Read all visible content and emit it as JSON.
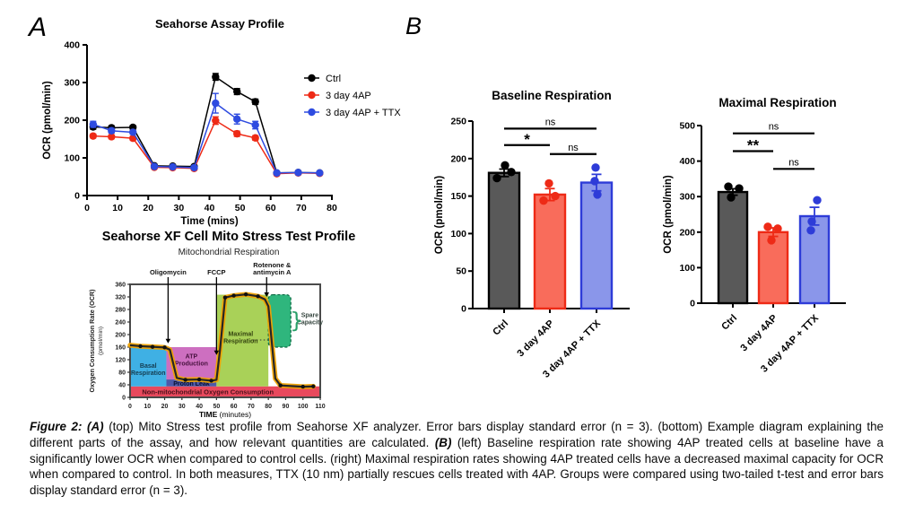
{
  "panel_a": {
    "label": "A"
  },
  "panel_b": {
    "label": "B"
  },
  "chart_data": [
    {
      "type": "line",
      "title": "Seahorse Assay Profile",
      "xlabel": "Time (mins)",
      "ylabel": "OCR (pmol/min)",
      "xlim": [
        0,
        80
      ],
      "ylim": [
        0,
        400
      ],
      "xtick_step": 10,
      "ytick_step": 100,
      "legend_position": "right",
      "x": [
        2,
        8,
        15,
        22,
        28,
        35,
        42,
        49,
        55,
        62,
        69,
        76
      ],
      "series": [
        {
          "name": "Ctrl",
          "color": "#000000",
          "values": [
            182,
            180,
            181,
            79,
            78,
            77,
            315,
            276,
            249,
            60,
            61,
            60
          ],
          "errors": [
            6,
            5,
            5,
            3,
            3,
            3,
            9,
            8,
            7,
            2,
            2,
            2
          ]
        },
        {
          "name": "3 day 4AP",
          "color": "#EE2A16",
          "values": [
            158,
            156,
            152,
            75,
            74,
            72,
            199,
            164,
            153,
            58,
            60,
            59
          ],
          "errors": [
            5,
            5,
            5,
            3,
            3,
            3,
            10,
            7,
            6,
            2,
            2,
            2
          ]
        },
        {
          "name": "3 day 4AP + TTX",
          "color": "#2E4BE0",
          "values": [
            189,
            172,
            168,
            77,
            76,
            74,
            245,
            203,
            187,
            60,
            61,
            60
          ],
          "errors": [
            8,
            6,
            5,
            3,
            3,
            3,
            26,
            13,
            10,
            2,
            2,
            2
          ]
        }
      ]
    },
    {
      "type": "diagram",
      "title": "Seahorse XF Cell Mito Stress Test Profile",
      "subtitle": "Mitochondrial Respiration",
      "ylabel": "Oxygen Consumption Rate (OCR)",
      "ylabel2": "(pmol/min)",
      "xlabel_bold": "TIME",
      "xlabel_rest": " (minutes)",
      "xlim": [
        0,
        110
      ],
      "ylim": [
        0,
        360
      ],
      "xtick_step": 10,
      "ytick_step": 40,
      "line_color": "#262626",
      "glow_color": "#F0A202",
      "regions": [
        {
          "name": "non-mitochondrial",
          "label": "Non-mitochondrial Oxygen Consumption",
          "x": [
            0,
            110
          ],
          "y": [
            0,
            35
          ],
          "color": "#E8495D",
          "label_color": "#4A101A",
          "label_pos": [
            45,
            16
          ],
          "label_size": 7.5
        },
        {
          "name": "basal-respiration",
          "label": "Basal\nRespiration",
          "x": [
            0,
            21
          ],
          "y": [
            35,
            160
          ],
          "color": "#3FB0E4",
          "label_color": "#143C50",
          "label_pos": [
            10.5,
            88
          ],
          "label_size": 7
        },
        {
          "name": "proton-leak",
          "label": "Proton Leak",
          "x": [
            21,
            50
          ],
          "y": [
            35,
            57
          ],
          "color": "#4D59A8",
          "label_color": "#0A0F2E",
          "label_pos": [
            35.5,
            43
          ],
          "label_size": 7
        },
        {
          "name": "atp-production",
          "label": "ATP\nProduction",
          "x": [
            21,
            50
          ],
          "y": [
            57,
            160
          ],
          "color": "#CD6FC0",
          "label_color": "#47123E",
          "label_pos": [
            35.5,
            118
          ],
          "label_size": 7
        },
        {
          "name": "maximal-respiration",
          "label": "Maximal\nRespiration",
          "x": [
            50,
            80
          ],
          "y": [
            35,
            327
          ],
          "color": "#A9D158",
          "label_color": "#33420F",
          "label_pos": [
            64,
            190
          ],
          "label_size": 7
        },
        {
          "name": "spare-capacity",
          "label": "Spare\nCapacity",
          "x": [
            80,
            93
          ],
          "y": [
            160,
            327
          ],
          "color": "#2FB67D",
          "dashed": true,
          "label_color": "#374740",
          "label_pos": [
            104,
            250
          ],
          "label_size": 7,
          "brace_x": 94,
          "brace_y": 244
        }
      ],
      "line_points": [
        [
          0,
          166
        ],
        [
          6,
          163
        ],
        [
          13,
          161
        ],
        [
          20,
          159
        ],
        [
          23,
          152
        ],
        [
          27,
          62
        ],
        [
          32,
          56
        ],
        [
          40,
          57
        ],
        [
          47,
          53
        ],
        [
          50,
          56
        ],
        [
          52,
          150
        ],
        [
          55,
          318
        ],
        [
          60,
          324
        ],
        [
          67,
          328
        ],
        [
          74,
          322
        ],
        [
          78,
          312
        ],
        [
          80,
          290
        ],
        [
          84,
          60
        ],
        [
          87,
          38
        ],
        [
          93,
          36
        ],
        [
          100,
          34
        ],
        [
          106,
          35
        ]
      ],
      "dot_points": [
        [
          6,
          163
        ],
        [
          13,
          161
        ],
        [
          20,
          159
        ],
        [
          32,
          56
        ],
        [
          40,
          57
        ],
        [
          47,
          53
        ],
        [
          55,
          318
        ],
        [
          60,
          324
        ],
        [
          67,
          328
        ],
        [
          74,
          322
        ],
        [
          87,
          38
        ],
        [
          100,
          34
        ],
        [
          106,
          35
        ]
      ],
      "injections": [
        {
          "label_lines": [
            "Oligomycin"
          ],
          "x": 22,
          "tip_y": 172
        },
        {
          "label_lines": [
            "FCCP"
          ],
          "x": 50,
          "tip_y": 135
        },
        {
          "label_lines": [
            "Rotenone &",
            "antimycin A"
          ],
          "x": 79,
          "tip_y": 320,
          "label_dx": 6
        }
      ]
    },
    {
      "type": "bar",
      "title": "Baseline Respiration",
      "ylabel": "OCR (pmol/min)",
      "ylim": [
        0,
        250
      ],
      "ytick_step": 50,
      "categories": [
        "Ctrl",
        "3 day 4AP",
        "3 day 4AP + TTX"
      ],
      "values": [
        181,
        152,
        168
      ],
      "errors": [
        5,
        8,
        11
      ],
      "bar_fills": [
        "#595959",
        "#F96C5B",
        "#8A96EA"
      ],
      "bar_borders": [
        "#000000",
        "#EE2A16",
        "#2E3CD8"
      ],
      "points": [
        [
          {
            "dx": -8,
            "v": 174
          },
          {
            "dx": 1,
            "v": 191
          },
          {
            "dx": 8,
            "v": 182
          }
        ],
        [
          {
            "dx": -7,
            "v": 144
          },
          {
            "dx": -1,
            "v": 167
          },
          {
            "dx": 6,
            "v": 150
          }
        ],
        [
          {
            "dx": -1,
            "v": 188
          },
          {
            "dx": -2,
            "v": 170
          },
          {
            "dx": 1,
            "v": 152
          }
        ]
      ],
      "significance": [
        {
          "from": 0,
          "to": 2,
          "label": "ns",
          "y": 240
        },
        {
          "from": 0,
          "to": 1,
          "label": "*",
          "y": 218
        },
        {
          "from": 1,
          "to": 2,
          "label": "ns",
          "y": 206
        }
      ]
    },
    {
      "type": "bar",
      "title": "Maximal Respiration",
      "ylabel": "OCR (pmol/min)",
      "ylim": [
        0,
        500
      ],
      "ytick_step": 100,
      "categories": [
        "Ctrl",
        "3 day 4AP",
        "3 day 4AP + TTX"
      ],
      "values": [
        313,
        200,
        245
      ],
      "errors": [
        9,
        12,
        25
      ],
      "bar_fills": [
        "#595959",
        "#F96C5B",
        "#8A96EA"
      ],
      "bar_borders": [
        "#000000",
        "#EE2A16",
        "#2E3CD8"
      ],
      "points": [
        [
          {
            "dx": -5,
            "v": 328
          },
          {
            "dx": 7,
            "v": 323
          },
          {
            "dx": -2,
            "v": 298
          }
        ],
        [
          {
            "dx": -6,
            "v": 215
          },
          {
            "dx": 5,
            "v": 210
          },
          {
            "dx": -2,
            "v": 177
          }
        ],
        [
          {
            "dx": 3,
            "v": 290
          },
          {
            "dx": -3,
            "v": 230
          },
          {
            "dx": -4,
            "v": 205
          }
        ]
      ],
      "significance": [
        {
          "from": 0,
          "to": 2,
          "label": "ns",
          "y": 478
        },
        {
          "from": 0,
          "to": 1,
          "label": "**",
          "y": 428
        },
        {
          "from": 1,
          "to": 2,
          "label": "ns",
          "y": 378
        }
      ]
    }
  ],
  "caption": {
    "segments": [
      {
        "text": "Figure 2: (A)",
        "style": "bi"
      },
      {
        "text": " (top) Mito Stress test profile from Seahorse XF analyzer. Error bars display standard error (n = 3). (bottom) Example diagram explaining the different parts of the assay, and how relevant quantities are calculated.  ",
        "style": "n"
      },
      {
        "text": "(B)",
        "style": "bi"
      },
      {
        "text": " (left) Baseline respiration rate showing 4AP treated cells at baseline have a significantly lower OCR when compared to control cells. (right) Maximal respiration rates showing 4AP treated cells have a decreased maximal capacity for OCR when compared to control. In both measures, TTX (10 nm) partially rescues cells treated with 4AP. Groups were compared using two-tailed t-test and error bars display standard error (n = 3).",
        "style": "n"
      }
    ]
  }
}
